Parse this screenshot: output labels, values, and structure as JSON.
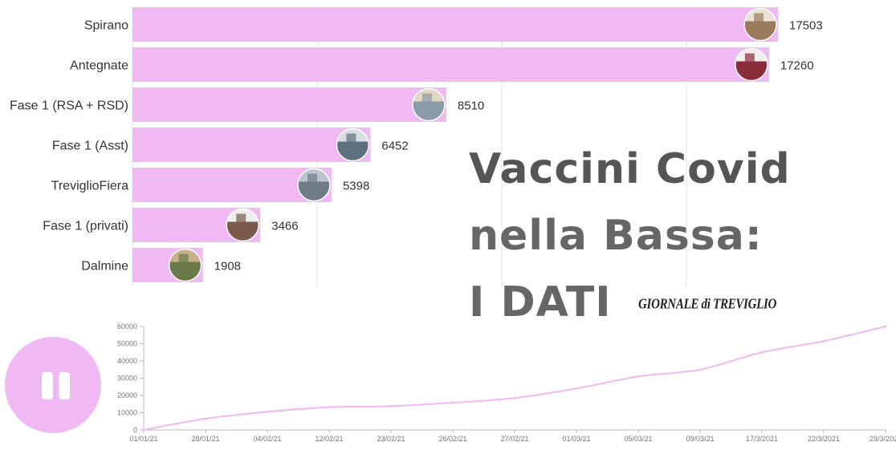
{
  "headline": [
    "Vaccini Covid",
    "nella Bassa:",
    "I DATI"
  ],
  "logo_text": "GIORNALE di TREVIGLIO",
  "colors": {
    "bar": "#f0b9f3",
    "line": "#f0b9f3",
    "grid": "#e3e3e3",
    "text": "#333333"
  },
  "controls": {
    "pause_icon": "pause-icon"
  },
  "chart_data": [
    {
      "type": "bar",
      "orientation": "horizontal",
      "categories": [
        "Spirano",
        "Antegnate",
        "Fase 1 (RSA + RSD)",
        "Fase 1 (Asst)",
        "TreviglioFiera",
        "Fase 1 (privati)",
        "Dalmine"
      ],
      "values": [
        17503,
        17260,
        8510,
        6452,
        5398,
        3466,
        1908
      ],
      "xlim": [
        0,
        17503
      ],
      "grid": true,
      "images": "circular photo at end of each bar"
    },
    {
      "type": "line",
      "x": [
        "01/01/21",
        "28/01/21",
        "04/02/21",
        "12/02/21",
        "23/02/21",
        "26/02/21",
        "27/02/21",
        "01/03/21",
        "05/03/21",
        "09/03/21",
        "17/3/2021",
        "22/3/2021",
        "29/3/2021"
      ],
      "values": [
        0,
        6500,
        10500,
        13200,
        13800,
        15800,
        18500,
        24000,
        31000,
        35000,
        45000,
        51500,
        60000
      ],
      "y_ticks": [
        "0",
        "10000",
        "20000",
        "30000",
        "40000",
        "50000",
        "60000"
      ],
      "ylim": [
        0,
        60000
      ],
      "grid": false
    }
  ]
}
